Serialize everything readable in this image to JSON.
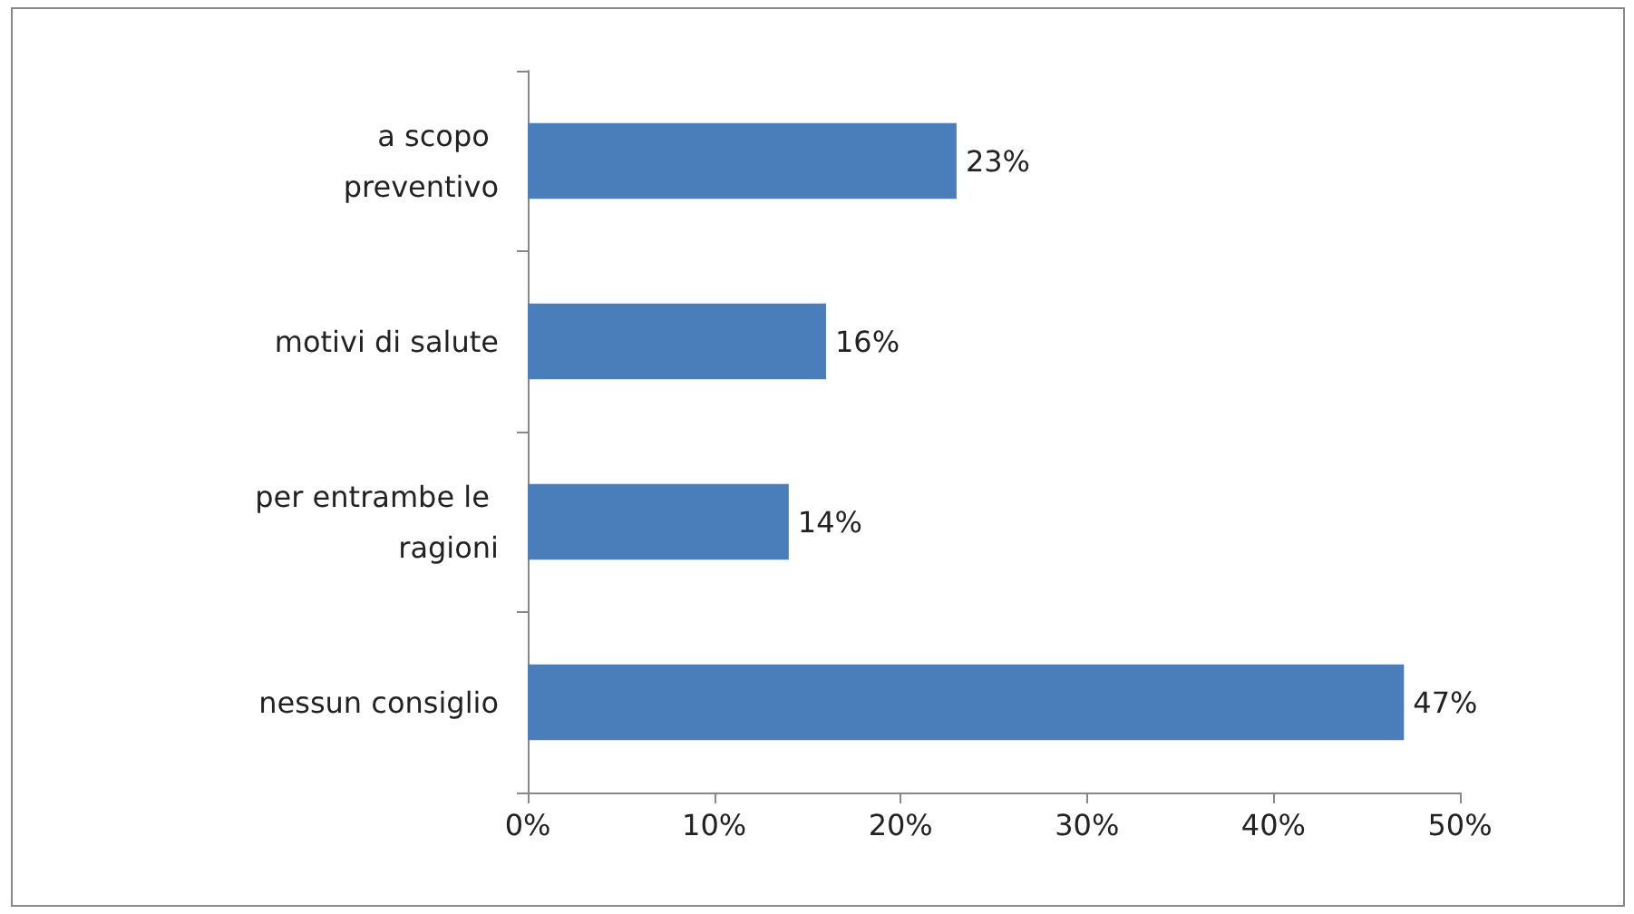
{
  "chart_data": {
    "type": "bar",
    "orientation": "horizontal",
    "categories": [
      "a scopo preventivo",
      "motivi di salute",
      "per entrambe le ragioni",
      "nessun consiglio"
    ],
    "values": [
      23,
      16,
      14,
      47
    ],
    "value_labels": [
      "23%",
      "16%",
      "14%",
      "47%"
    ],
    "color": "#4a7ebb",
    "xlim": [
      0,
      50
    ],
    "xticks": [
      {
        "value": 0,
        "label": "0%"
      },
      {
        "value": 10,
        "label": "10%"
      },
      {
        "value": 20,
        "label": "20%"
      },
      {
        "value": 30,
        "label": "30%"
      },
      {
        "value": 40,
        "label": "40%"
      },
      {
        "value": 50,
        "label": "50%"
      }
    ],
    "grid": false
  }
}
